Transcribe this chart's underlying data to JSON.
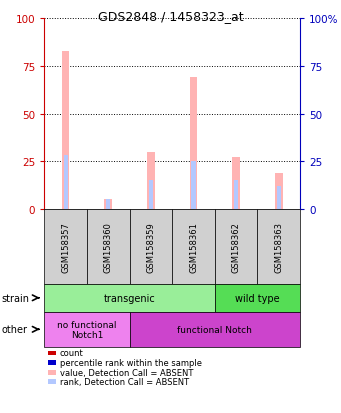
{
  "title": "GDS2848 / 1458323_at",
  "samples": [
    "GSM158357",
    "GSM158360",
    "GSM158359",
    "GSM158361",
    "GSM158362",
    "GSM158363"
  ],
  "value_absent": [
    83,
    5,
    30,
    69,
    27,
    19
  ],
  "rank_absent": [
    28,
    5,
    15,
    25,
    15,
    12
  ],
  "ylim": [
    0,
    100
  ],
  "yticks": [
    0,
    25,
    50,
    75,
    100
  ],
  "color_value_absent": "#FFB3B3",
  "color_rank_absent": "#B3C8FF",
  "color_count": "#CC0000",
  "color_rank_blue": "#0000CC",
  "strain_groups": [
    {
      "label": "transgenic",
      "samples": [
        0,
        1,
        2,
        3
      ],
      "color": "#99EE99"
    },
    {
      "label": "wild type",
      "samples": [
        4,
        5
      ],
      "color": "#55DD55"
    }
  ],
  "other_groups": [
    {
      "label": "no functional\nNotch1",
      "samples": [
        0,
        1
      ],
      "color": "#EE82EE"
    },
    {
      "label": "functional Notch",
      "samples": [
        2,
        3,
        4,
        5
      ],
      "color": "#CC44CC"
    }
  ],
  "legend_labels": [
    "count",
    "percentile rank within the sample",
    "value, Detection Call = ABSENT",
    "rank, Detection Call = ABSENT"
  ],
  "legend_colors": [
    "#CC0000",
    "#0000CC",
    "#FFB3B3",
    "#B3C8FF"
  ],
  "ylabel_left_color": "#CC0000",
  "ylabel_right_color": "#0000BB",
  "title_fontsize": 9,
  "bar_fontsize": 6
}
